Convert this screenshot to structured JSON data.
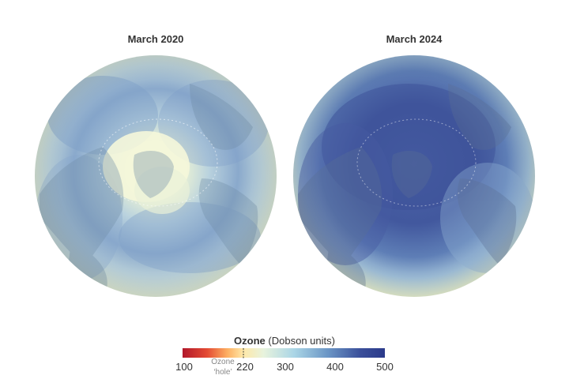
{
  "panels": [
    {
      "title": "March 2020",
      "highlight": "ozone-low-arctic"
    },
    {
      "title": "March 2024",
      "highlight": "ozone-high-arctic"
    }
  ],
  "legend": {
    "title_bold": "Ozone",
    "title_rest": "(Dobson units)",
    "ticks": [
      "100",
      "220",
      "300",
      "400",
      "500"
    ],
    "hole_label_line1": "Ozone",
    "hole_label_line2": "‘hole’",
    "scale_min": 100,
    "scale_max": 500,
    "hole_threshold": 220,
    "colors": [
      "#b2182b",
      "#e34a33",
      "#fdae61",
      "#fee8a8",
      "#e8f3dd",
      "#abd6e6",
      "#6a95c5",
      "#3a4f9a",
      "#2b3a8a"
    ]
  }
}
